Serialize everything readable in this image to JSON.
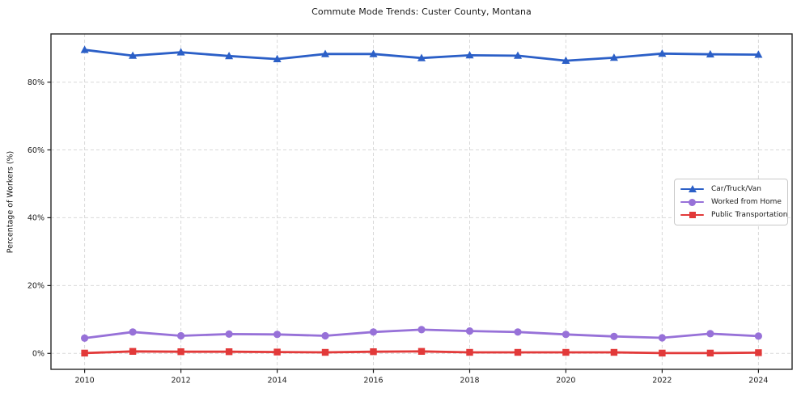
{
  "chart_data": {
    "type": "line",
    "title": "Commute Mode Trends: Custer County, Montana",
    "xlabel": "",
    "ylabel": "Percentage of Workers (%)",
    "x": [
      2010,
      2011,
      2012,
      2013,
      2014,
      2015,
      2016,
      2017,
      2018,
      2019,
      2020,
      2021,
      2022,
      2023,
      2024
    ],
    "series": [
      {
        "name": "Car/Truck/Van",
        "key": "car-truck-van",
        "color": "#2b5fc7",
        "marker": "triangle",
        "values": [
          89.5,
          87.8,
          88.8,
          87.7,
          86.8,
          88.3,
          88.3,
          87.1,
          87.9,
          87.8,
          86.3,
          87.2,
          88.4,
          88.2,
          88.1
        ]
      },
      {
        "name": "Worked from Home",
        "key": "worked-from-home",
        "color": "#9771d8",
        "marker": "circle",
        "values": [
          4.5,
          6.3,
          5.2,
          5.7,
          5.6,
          5.2,
          6.3,
          7.0,
          6.6,
          6.3,
          5.6,
          5.0,
          4.6,
          5.8,
          5.1
        ]
      },
      {
        "name": "Public Transportation",
        "key": "public-transportation",
        "color": "#e23939",
        "marker": "square",
        "values": [
          0.1,
          0.6,
          0.5,
          0.5,
          0.4,
          0.3,
          0.5,
          0.6,
          0.3,
          0.3,
          0.3,
          0.3,
          0.1,
          0.1,
          0.2
        ]
      }
    ],
    "xticks": {
      "values": [
        2010,
        2012,
        2014,
        2016,
        2018,
        2020,
        2022,
        2024
      ],
      "labels": [
        "2010",
        "2012",
        "2014",
        "2016",
        "2018",
        "2020",
        "2022",
        "2024"
      ]
    },
    "yticks": {
      "values": [
        0,
        20,
        40,
        60,
        80
      ],
      "labels": [
        "0%",
        "20%",
        "40%",
        "60%",
        "80%"
      ]
    },
    "xlim": [
      2009.3,
      2024.7
    ],
    "ylim": [
      -4.7,
      94.2
    ],
    "grid": true,
    "grid_style": "dashed",
    "legend_position": "center-right"
  },
  "colors": {
    "grid": "#d9d9d9",
    "axis_frame": "#262626",
    "tick": "#1a1a1a",
    "text": "#1a1a1a",
    "background": "#ffffff",
    "legend_border": "#c9c9c9"
  }
}
